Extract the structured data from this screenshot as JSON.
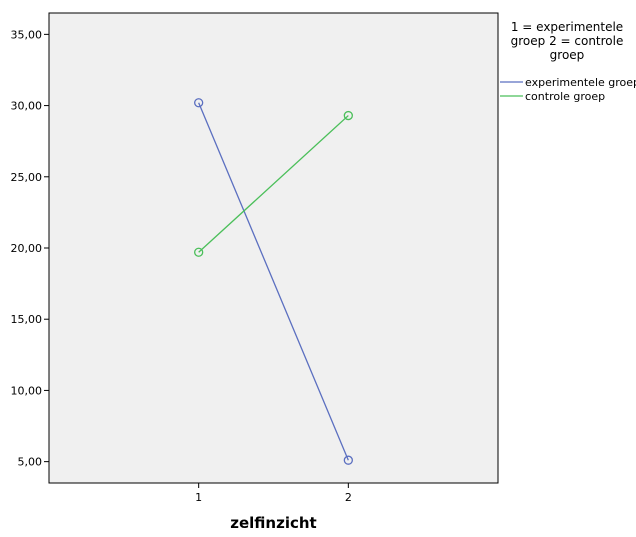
{
  "chart_data": {
    "type": "line",
    "title": "",
    "xlabel": "zelfinzicht",
    "ylabel": "",
    "categories": [
      "1",
      "2"
    ],
    "xlim": [
      0,
      3
    ],
    "ylim": [
      3.5,
      36.5
    ],
    "yticks": [
      5,
      10,
      15,
      20,
      25,
      30,
      35
    ],
    "ytick_labels": [
      "5,00",
      "10,00",
      "15,00",
      "20,00",
      "25,00",
      "30,00",
      "35,00"
    ],
    "grid": false,
    "legend": {
      "placement": "right",
      "title_lines": [
        "1 = experimentele",
        "groep 2 = controle",
        "groep"
      ]
    },
    "series": [
      {
        "name": "experimentele groep",
        "x": [
          1,
          2
        ],
        "values": [
          30.2,
          5.1
        ],
        "color": "#5b6fc0"
      },
      {
        "name": "controle groep",
        "x": [
          1,
          2
        ],
        "values": [
          19.7,
          29.3
        ],
        "color": "#4bbf5a"
      }
    ],
    "plot_background": "#f0f0f0"
  }
}
